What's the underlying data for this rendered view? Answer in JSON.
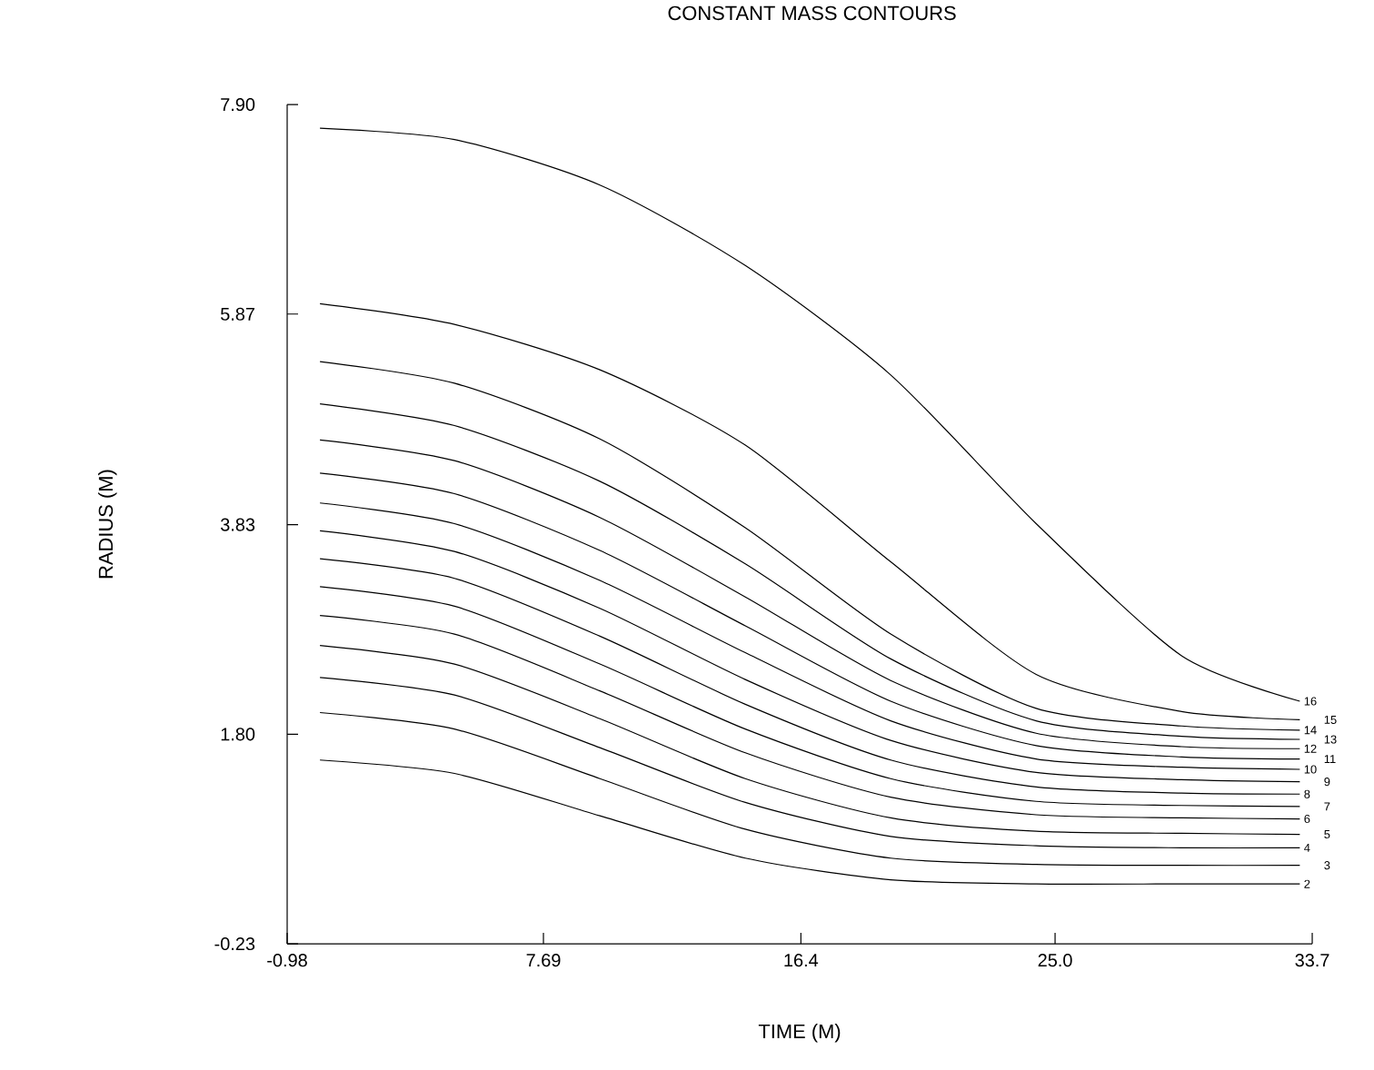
{
  "chart_data": {
    "type": "line",
    "title": "CONSTANT MASS CONTOURS",
    "xlabel": "TIME (M)",
    "ylabel": "RADIUS (M)",
    "x": [
      0.13,
      4.68,
      9.6,
      14.52,
      19.44,
      24.36,
      29.28,
      33.28
    ],
    "xlim": [
      -0.98,
      33.7
    ],
    "ylim": [
      -0.23,
      7.9
    ],
    "xticks": [
      -0.98,
      7.69,
      16.4,
      {
        "value": 25.0,
        "label": "25.0"
      },
      33.7
    ],
    "yticks": [
      -0.23,
      {
        "value": 1.8,
        "label": "1.80"
      },
      3.83,
      5.87,
      {
        "value": 7.9,
        "label": "7.90"
      }
    ],
    "grid": false,
    "legend": false,
    "marker": "none",
    "line_style": "solid",
    "series": [
      {
        "name": "2",
        "color": "#000000",
        "values": [
          1.55,
          1.42,
          1.01,
          0.6,
          0.39,
          0.35,
          0.35,
          0.35
        ]
      },
      {
        "name": "3",
        "color": "#000000",
        "values": [
          2.01,
          1.85,
          1.37,
          0.88,
          0.6,
          0.54,
          0.53,
          0.53
        ]
      },
      {
        "name": "4",
        "color": "#000000",
        "values": [
          2.35,
          2.18,
          1.67,
          1.14,
          0.81,
          0.72,
          0.7,
          0.7
        ]
      },
      {
        "name": "5",
        "color": "#000000",
        "values": [
          2.66,
          2.48,
          1.95,
          1.37,
          0.99,
          0.86,
          0.84,
          0.83
        ]
      },
      {
        "name": "6",
        "color": "#000000",
        "values": [
          2.95,
          2.77,
          2.22,
          1.62,
          1.19,
          1.02,
          0.99,
          0.98
        ]
      },
      {
        "name": "7",
        "color": "#000000",
        "values": [
          3.23,
          3.04,
          2.48,
          1.85,
          1.37,
          1.15,
          1.11,
          1.1
        ]
      },
      {
        "name": "8",
        "color": "#000000",
        "values": [
          3.5,
          3.31,
          2.75,
          2.09,
          1.55,
          1.29,
          1.23,
          1.22
        ]
      },
      {
        "name": "9",
        "color": "#000000",
        "values": [
          3.77,
          3.57,
          3.02,
          2.33,
          1.74,
          1.43,
          1.36,
          1.34
        ]
      },
      {
        "name": "10",
        "color": "#000000",
        "values": [
          4.04,
          3.84,
          3.29,
          2.59,
          1.93,
          1.56,
          1.48,
          1.46
        ]
      },
      {
        "name": "11",
        "color": "#000000",
        "values": [
          4.33,
          4.13,
          3.58,
          2.85,
          2.12,
          1.69,
          1.58,
          1.56
        ]
      },
      {
        "name": "12",
        "color": "#000000",
        "values": [
          4.65,
          4.45,
          3.9,
          3.13,
          2.32,
          1.81,
          1.68,
          1.66
        ]
      },
      {
        "name": "13",
        "color": "#000000",
        "values": [
          5.0,
          4.79,
          4.25,
          3.45,
          2.53,
          1.93,
          1.78,
          1.75
        ]
      },
      {
        "name": "14",
        "color": "#000000",
        "values": [
          5.41,
          5.2,
          4.66,
          3.8,
          2.77,
          2.05,
          1.88,
          1.84
        ]
      },
      {
        "name": "15",
        "color": "#000000",
        "values": [
          5.97,
          5.77,
          5.33,
          4.6,
          3.47,
          2.38,
          2.02,
          1.94
        ]
      },
      {
        "name": "16",
        "color": "#000000",
        "values": [
          7.67,
          7.56,
          7.12,
          6.34,
          5.28,
          3.84,
          2.56,
          2.12
        ]
      }
    ]
  }
}
